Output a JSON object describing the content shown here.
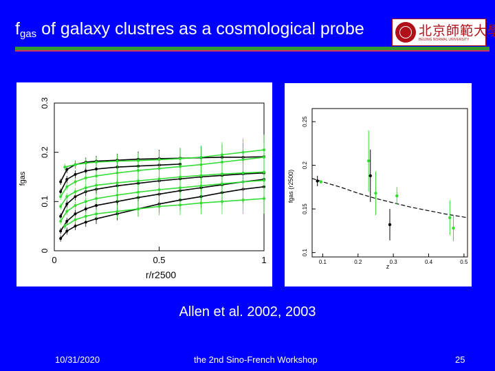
{
  "slide": {
    "title_main": "f",
    "title_sub": "gas",
    "title_rest": " of galaxy clustres as a cosmological probe",
    "logo_name": "北京師範大學",
    "logo_sub": "BEIJING NORMAL UNIVERSITY",
    "caption": "Allen et al. 2002, 2003",
    "footer_date": "10/31/2020",
    "footer_center": "the 2nd Sino-French Workshop",
    "footer_page": "25"
  },
  "colors": {
    "background": "#0000ff",
    "rule_green": "#339933",
    "rule_red": "#cc3366",
    "series_green": "#33dd33",
    "series_black": "#000000"
  },
  "chart_data": [
    {
      "type": "line",
      "title": "",
      "xlabel": "r/r2500",
      "ylabel": "fgas",
      "xlim": [
        0,
        1
      ],
      "ylim": [
        0,
        0.3
      ],
      "x_ticks": [
        "0",
        "0.5",
        "1"
      ],
      "y_ticks": [
        "0",
        "0.1",
        "0.2",
        "0.3"
      ],
      "series": [
        {
          "color": "black",
          "x": [
            0.03,
            0.06,
            0.1,
            0.15,
            0.2,
            0.3,
            0.4,
            0.5,
            0.6
          ],
          "y": [
            0.12,
            0.145,
            0.155,
            0.162,
            0.166,
            0.17,
            0.172,
            0.174,
            0.176
          ]
        },
        {
          "color": "black",
          "x": [
            0.03,
            0.06,
            0.1,
            0.15,
            0.2,
            0.3,
            0.4,
            0.5,
            0.6,
            0.7,
            0.8,
            0.9,
            1.0
          ],
          "y": [
            0.14,
            0.165,
            0.175,
            0.18,
            0.182,
            0.184,
            0.186,
            0.187,
            0.188,
            0.189,
            0.19,
            0.19,
            0.191
          ]
        },
        {
          "color": "black",
          "x": [
            0.03,
            0.06,
            0.1,
            0.15,
            0.2,
            0.3,
            0.4,
            0.5,
            0.6,
            0.7,
            0.8,
            0.9,
            1.0
          ],
          "y": [
            0.07,
            0.095,
            0.11,
            0.12,
            0.125,
            0.132,
            0.137,
            0.142,
            0.146,
            0.15,
            0.153,
            0.156,
            0.158
          ]
        },
        {
          "color": "black",
          "x": [
            0.03,
            0.06,
            0.1,
            0.15,
            0.2,
            0.3,
            0.4,
            0.5,
            0.6,
            0.7,
            0.8,
            0.9,
            1.0
          ],
          "y": [
            0.04,
            0.06,
            0.075,
            0.085,
            0.092,
            0.1,
            0.108,
            0.115,
            0.122,
            0.128,
            0.134,
            0.14,
            0.145
          ]
        },
        {
          "color": "black",
          "x": [
            0.03,
            0.06,
            0.1,
            0.15,
            0.2,
            0.3,
            0.4,
            0.5,
            0.6,
            0.7,
            0.8,
            0.9,
            1.0
          ],
          "y": [
            0.025,
            0.04,
            0.05,
            0.058,
            0.065,
            0.075,
            0.085,
            0.095,
            0.103,
            0.11,
            0.118,
            0.125,
            0.13
          ]
        },
        {
          "color": "green",
          "x": [
            0.05,
            0.1,
            0.15,
            0.2,
            0.3,
            0.4,
            0.5,
            0.6,
            0.7,
            0.8,
            0.9,
            1.0
          ],
          "y": [
            0.17,
            0.175,
            0.178,
            0.18,
            0.182,
            0.183,
            0.185,
            0.187,
            0.19,
            0.195,
            0.2,
            0.205
          ]
        },
        {
          "color": "green",
          "x": [
            0.03,
            0.06,
            0.1,
            0.15,
            0.2,
            0.3,
            0.4,
            0.5,
            0.6,
            0.7,
            0.8,
            0.9,
            1.0
          ],
          "y": [
            0.11,
            0.13,
            0.14,
            0.148,
            0.152,
            0.158,
            0.163,
            0.167,
            0.171,
            0.175,
            0.18,
            0.185,
            0.19
          ]
        },
        {
          "color": "green",
          "x": [
            0.03,
            0.06,
            0.1,
            0.15,
            0.2,
            0.3,
            0.4,
            0.5,
            0.6,
            0.7,
            0.8,
            0.9,
            1.0
          ],
          "y": [
            0.09,
            0.11,
            0.12,
            0.128,
            0.133,
            0.138,
            0.142,
            0.146,
            0.15,
            0.153,
            0.156,
            0.158,
            0.16
          ]
        },
        {
          "color": "green",
          "x": [
            0.03,
            0.06,
            0.1,
            0.15,
            0.2,
            0.3,
            0.4,
            0.5,
            0.6,
            0.7,
            0.8,
            0.9,
            1.0
          ],
          "y": [
            0.06,
            0.08,
            0.092,
            0.1,
            0.106,
            0.113,
            0.119,
            0.124,
            0.128,
            0.132,
            0.136,
            0.14,
            0.143
          ]
        },
        {
          "color": "green",
          "x": [
            0.05,
            0.1,
            0.15,
            0.2,
            0.3,
            0.4,
            0.5,
            0.6,
            0.7,
            0.8,
            0.9,
            1.0
          ],
          "y": [
            0.05,
            0.063,
            0.07,
            0.075,
            0.08,
            0.085,
            0.09,
            0.093,
            0.097,
            0.1,
            0.103,
            0.106
          ]
        }
      ]
    },
    {
      "type": "scatter",
      "title": "",
      "xlabel": "z",
      "ylabel": "fgas (r2500)",
      "xlim": [
        0.07,
        0.51
      ],
      "ylim": [
        0.095,
        0.265
      ],
      "x_ticks": [
        "0.1",
        "0.2",
        "0.3",
        "0.4",
        "0.5"
      ],
      "y_ticks": [
        "0.1",
        "0.15",
        "0.2",
        "0.25"
      ],
      "points": [
        {
          "x": 0.085,
          "y": 0.182,
          "err": 0.006,
          "color": "black"
        },
        {
          "x": 0.095,
          "y": 0.181,
          "err": 0.002,
          "color": "green"
        },
        {
          "x": 0.23,
          "y": 0.205,
          "err": 0.035,
          "color": "green"
        },
        {
          "x": 0.235,
          "y": 0.188,
          "err": 0.03,
          "color": "black"
        },
        {
          "x": 0.25,
          "y": 0.168,
          "err": 0.025,
          "color": "green"
        },
        {
          "x": 0.29,
          "y": 0.132,
          "err": 0.018,
          "color": "black"
        },
        {
          "x": 0.31,
          "y": 0.165,
          "err": 0.01,
          "color": "green"
        },
        {
          "x": 0.46,
          "y": 0.14,
          "err": 0.02,
          "color": "green"
        },
        {
          "x": 0.47,
          "y": 0.128,
          "err": 0.015,
          "color": "green"
        }
      ],
      "fit_curve": {
        "x": [
          0.07,
          0.1,
          0.15,
          0.2,
          0.25,
          0.3,
          0.35,
          0.4,
          0.45,
          0.51
        ],
        "y": [
          0.185,
          0.181,
          0.175,
          0.168,
          0.162,
          0.157,
          0.152,
          0.148,
          0.144,
          0.14
        ]
      }
    }
  ]
}
